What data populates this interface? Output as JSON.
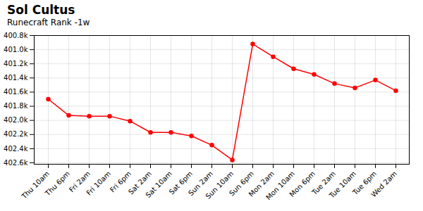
{
  "chart_data": {
    "type": "line",
    "title": "Sol Cultus",
    "subtitle": "Runecraft Rank -1w",
    "categories": [
      "Thu 10am",
      "Thu 6pm",
      "Fri 2am",
      "Fri 10am",
      "Fri 6pm",
      "Sat 2am",
      "Sat 10am",
      "Sat 6pm",
      "Sun 2am",
      "Sun 10am",
      "Sun 6pm",
      "Mon 2am",
      "Mon 10am",
      "Mon 6pm",
      "Tue 2am",
      "Tue 10am",
      "Tue 6pm",
      "Wed 2am"
    ],
    "values": [
      401700,
      401930,
      401940,
      401940,
      402010,
      402170,
      402170,
      402220,
      402350,
      402560,
      400920,
      401100,
      401270,
      401350,
      401480,
      401540,
      401430,
      401580
    ],
    "color": "#ff0000",
    "marker": "circle",
    "ylim": [
      402620,
      400800
    ],
    "yticks": [
      {
        "value": 400800,
        "label": "400.8k"
      },
      {
        "value": 401000,
        "label": "401.0k"
      },
      {
        "value": 401200,
        "label": "401.2k"
      },
      {
        "value": 401400,
        "label": "401.4k"
      },
      {
        "value": 401600,
        "label": "401.6k"
      },
      {
        "value": 401800,
        "label": "401.8k"
      },
      {
        "value": 402000,
        "label": "402.0k"
      },
      {
        "value": 402200,
        "label": "402.2k"
      },
      {
        "value": 402400,
        "label": "402.4k"
      },
      {
        "value": 402600,
        "label": "402.6k"
      }
    ],
    "grid": true
  }
}
